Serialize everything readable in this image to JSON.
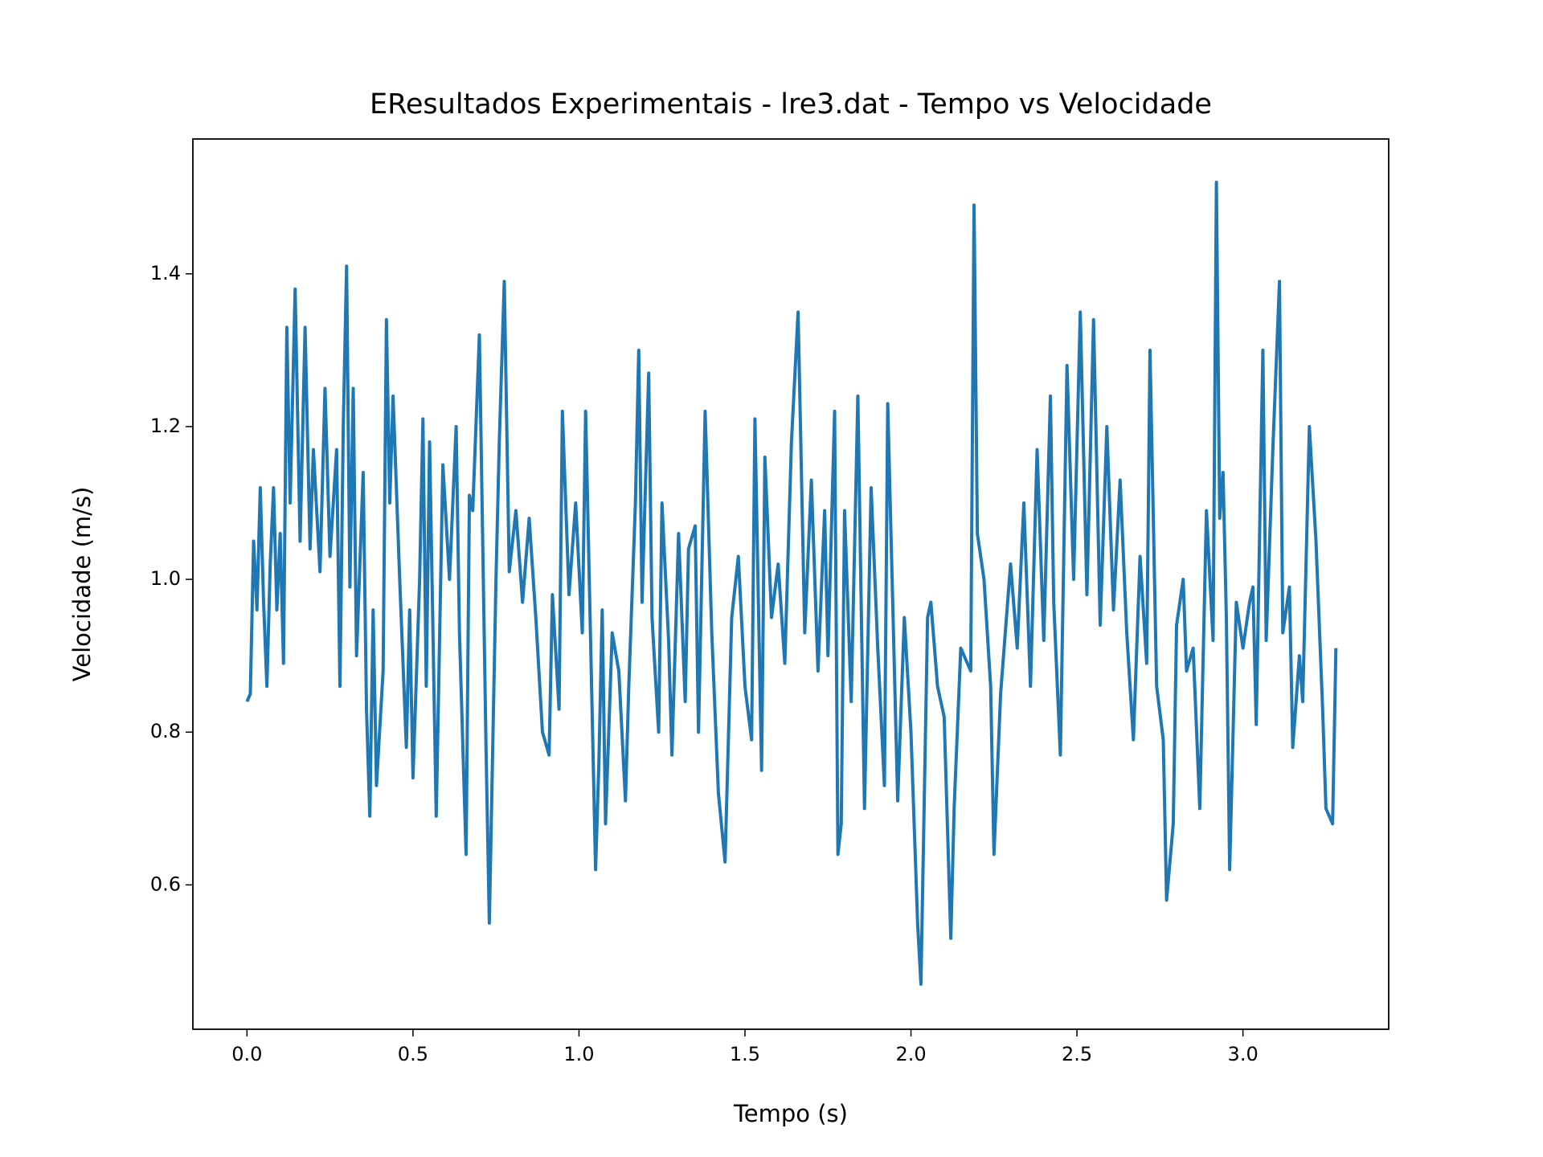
{
  "chart_data": {
    "type": "line",
    "title": "EResultados Experimentais - lre3.dat - Tempo vs Velocidade",
    "x_label": "Tempo (s)",
    "y_label": "Velocidade (m/s)",
    "xlim": [
      -0.163,
      3.439
    ],
    "ylim": [
      0.411,
      1.5765
    ],
    "xticks": [
      {
        "value": 0,
        "label": "0.0"
      },
      0.5,
      {
        "value": 1,
        "label": "1.0"
      },
      1.5,
      {
        "value": 2,
        "label": "2.0"
      },
      2.5,
      {
        "value": 3,
        "label": "3.0"
      }
    ],
    "yticks": [
      0.6,
      0.8,
      {
        "value": 1,
        "label": "1.0"
      },
      1.2,
      1.4
    ],
    "grid": false,
    "series": [
      {
        "color": "#1f77b4",
        "x": [
          0.0,
          0.01,
          0.02,
          0.03,
          0.04,
          0.05,
          0.06,
          0.07,
          0.08,
          0.09,
          0.1,
          0.11,
          0.12,
          0.13,
          0.145,
          0.16,
          0.175,
          0.19,
          0.2,
          0.22,
          0.235,
          0.25,
          0.27,
          0.28,
          0.29,
          0.3,
          0.31,
          0.32,
          0.33,
          0.35,
          0.36,
          0.37,
          0.38,
          0.39,
          0.41,
          0.42,
          0.43,
          0.44,
          0.46,
          0.48,
          0.49,
          0.5,
          0.52,
          0.53,
          0.54,
          0.55,
          0.57,
          0.59,
          0.61,
          0.63,
          0.64,
          0.66,
          0.67,
          0.68,
          0.7,
          0.72,
          0.73,
          0.75,
          0.76,
          0.775,
          0.79,
          0.81,
          0.83,
          0.85,
          0.87,
          0.89,
          0.91,
          0.92,
          0.94,
          0.95,
          0.97,
          0.99,
          1.01,
          1.02,
          1.04,
          1.05,
          1.06,
          1.07,
          1.08,
          1.1,
          1.12,
          1.14,
          1.15,
          1.17,
          1.18,
          1.19,
          1.21,
          1.22,
          1.24,
          1.25,
          1.27,
          1.28,
          1.3,
          1.32,
          1.33,
          1.35,
          1.36,
          1.38,
          1.4,
          1.42,
          1.44,
          1.46,
          1.48,
          1.5,
          1.52,
          1.53,
          1.55,
          1.56,
          1.58,
          1.6,
          1.62,
          1.64,
          1.66,
          1.68,
          1.7,
          1.72,
          1.74,
          1.75,
          1.77,
          1.78,
          1.79,
          1.8,
          1.82,
          1.84,
          1.86,
          1.88,
          1.9,
          1.92,
          1.93,
          1.96,
          1.98,
          2.0,
          2.02,
          2.03,
          2.05,
          2.06,
          2.08,
          2.1,
          2.12,
          2.13,
          2.15,
          2.18,
          2.19,
          2.2,
          2.22,
          2.24,
          2.25,
          2.27,
          2.3,
          2.32,
          2.34,
          2.36,
          2.38,
          2.4,
          2.42,
          2.43,
          2.45,
          2.47,
          2.49,
          2.51,
          2.53,
          2.55,
          2.57,
          2.59,
          2.61,
          2.63,
          2.65,
          2.67,
          2.69,
          2.71,
          2.72,
          2.74,
          2.76,
          2.77,
          2.79,
          2.8,
          2.82,
          2.83,
          2.85,
          2.87,
          2.89,
          2.91,
          2.92,
          2.93,
          2.94,
          2.95,
          2.96,
          2.98,
          3.0,
          3.02,
          3.03,
          3.04,
          3.06,
          3.07,
          3.09,
          3.11,
          3.12,
          3.14,
          3.15,
          3.17,
          3.18,
          3.2,
          3.22,
          3.24,
          3.25,
          3.27,
          3.28
        ],
        "values": [
          0.84,
          0.85,
          1.05,
          0.96,
          1.12,
          0.97,
          0.86,
          1.02,
          1.12,
          0.96,
          1.06,
          0.89,
          1.33,
          1.1,
          1.38,
          1.05,
          1.33,
          1.04,
          1.17,
          1.01,
          1.25,
          1.03,
          1.17,
          0.86,
          1.2,
          1.41,
          0.99,
          1.25,
          0.9,
          1.14,
          0.83,
          0.69,
          0.96,
          0.73,
          0.88,
          1.34,
          1.1,
          1.24,
          1.0,
          0.78,
          0.96,
          0.74,
          1.0,
          1.21,
          0.86,
          1.18,
          0.69,
          1.15,
          1.0,
          1.2,
          0.93,
          0.64,
          1.11,
          1.09,
          1.32,
          0.78,
          0.55,
          1.0,
          1.18,
          1.39,
          1.01,
          1.09,
          0.97,
          1.08,
          0.95,
          0.8,
          0.77,
          0.98,
          0.83,
          1.22,
          0.98,
          1.1,
          0.93,
          1.22,
          0.82,
          0.62,
          0.76,
          0.96,
          0.68,
          0.93,
          0.88,
          0.71,
          0.86,
          1.1,
          1.3,
          0.97,
          1.27,
          0.95,
          0.8,
          1.1,
          0.92,
          0.77,
          1.06,
          0.84,
          1.04,
          1.07,
          0.8,
          1.22,
          0.93,
          0.72,
          0.63,
          0.95,
          1.03,
          0.86,
          0.79,
          1.21,
          0.75,
          1.16,
          0.95,
          1.02,
          0.89,
          1.18,
          1.35,
          0.93,
          1.13,
          0.88,
          1.09,
          0.9,
          1.22,
          0.64,
          0.68,
          1.09,
          0.84,
          1.24,
          0.7,
          1.12,
          0.91,
          0.73,
          1.23,
          0.71,
          0.95,
          0.8,
          0.55,
          0.47,
          0.95,
          0.97,
          0.86,
          0.82,
          0.53,
          0.7,
          0.91,
          0.88,
          1.49,
          1.06,
          1.0,
          0.86,
          0.64,
          0.85,
          1.02,
          0.91,
          1.1,
          0.86,
          1.17,
          0.92,
          1.24,
          0.97,
          0.77,
          1.28,
          1.0,
          1.35,
          0.98,
          1.34,
          0.94,
          1.2,
          0.96,
          1.13,
          0.93,
          0.79,
          1.03,
          0.89,
          1.3,
          0.86,
          0.79,
          0.58,
          0.68,
          0.94,
          1.0,
          0.88,
          0.91,
          0.7,
          1.09,
          0.92,
          1.52,
          1.08,
          1.14,
          0.95,
          0.62,
          0.97,
          0.91,
          0.97,
          0.99,
          0.81,
          1.3,
          0.92,
          1.17,
          1.39,
          0.93,
          0.99,
          0.78,
          0.9,
          0.84,
          1.2,
          1.05,
          0.83,
          0.7,
          0.68,
          0.91
        ]
      }
    ]
  }
}
